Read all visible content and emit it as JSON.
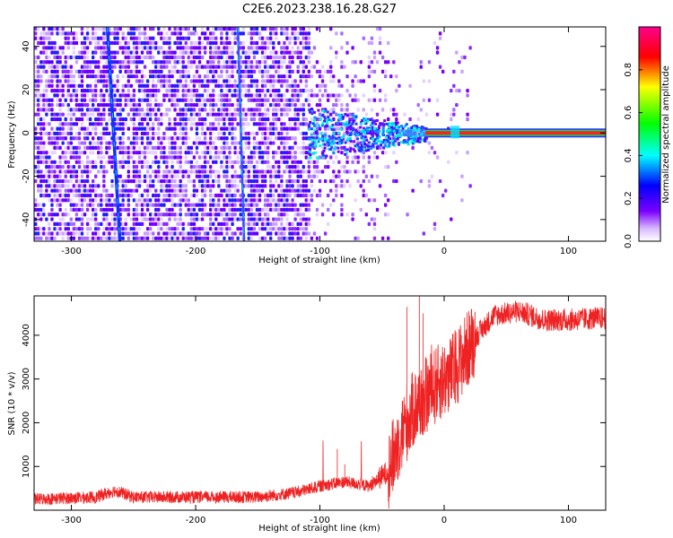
{
  "title": "C2E6.2023.238.16.28.G27",
  "chart_data": [
    {
      "type": "heatmap",
      "xlabel": "Height of straight line (km)",
      "ylabel": "Frequency (Hz)",
      "xlim": [
        -330,
        130
      ],
      "ylim": [
        -50,
        49
      ],
      "xticks": [
        -300,
        -200,
        -100,
        0,
        100
      ],
      "yticks": [
        -40,
        -20,
        0,
        20,
        40
      ],
      "colorbar": {
        "label": "Normalized spectral amplitude",
        "range": [
          0,
          1
        ],
        "ticks": [
          0.0,
          0.2,
          0.4,
          0.6,
          0.8
        ],
        "colormap": [
          "#ffffff",
          "#7a00ff",
          "#0000ff",
          "#00ffff",
          "#00ff00",
          "#ffff00",
          "#ff0000",
          "#ff00aa"
        ]
      },
      "features": {
        "noise_region_x": [
          -330,
          -40
        ],
        "signal_line_frequency_hz": 0,
        "signal_line_start_km": -15,
        "signal_line_amplitude": 0.95,
        "diagonal_artifacts_km": [
          {
            "x_top": -271,
            "x_bottom": -261
          },
          {
            "x_top": -166,
            "x_bottom": -161
          }
        ]
      }
    },
    {
      "type": "line",
      "xlabel": "Height of straight line (km)",
      "ylabel": "SNR (10 * v/v)",
      "xlim": [
        -330,
        130
      ],
      "ylim": [
        0,
        4900
      ],
      "xticks": [
        -300,
        -200,
        -100,
        0,
        100
      ],
      "yticks": [
        1000,
        2000,
        3000,
        4000
      ],
      "color": "#ee2222",
      "series_profile": [
        {
          "x": -330,
          "y": 250
        },
        {
          "x": -280,
          "y": 300
        },
        {
          "x": -265,
          "y": 450
        },
        {
          "x": -250,
          "y": 300
        },
        {
          "x": -150,
          "y": 300
        },
        {
          "x": -120,
          "y": 400
        },
        {
          "x": -100,
          "y": 550
        },
        {
          "x": -80,
          "y": 650
        },
        {
          "x": -60,
          "y": 550
        },
        {
          "x": -45,
          "y": 900
        },
        {
          "x": -35,
          "y": 1700
        },
        {
          "x": -25,
          "y": 2300
        },
        {
          "x": -15,
          "y": 2600
        },
        {
          "x": -5,
          "y": 2900
        },
        {
          "x": 5,
          "y": 3100
        },
        {
          "x": 15,
          "y": 3500
        },
        {
          "x": 25,
          "y": 3950
        },
        {
          "x": 40,
          "y": 4450
        },
        {
          "x": 60,
          "y": 4550
        },
        {
          "x": 80,
          "y": 4350
        },
        {
          "x": 100,
          "y": 4350
        },
        {
          "x": 130,
          "y": 4400
        }
      ],
      "spikes": [
        {
          "x": -80,
          "y": 1050
        },
        {
          "x": -86,
          "y": 1400
        },
        {
          "x": -20,
          "y": 4900
        },
        {
          "x": -30,
          "y": 4650
        },
        {
          "x": -17,
          "y": 4500
        }
      ]
    }
  ]
}
